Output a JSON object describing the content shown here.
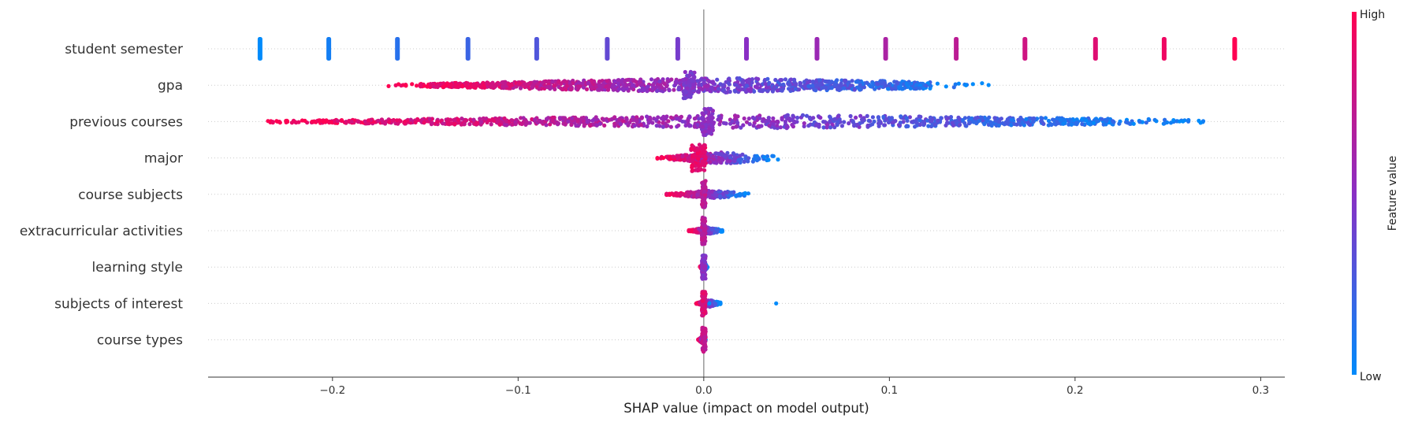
{
  "chart_data": {
    "type": "scatter",
    "subtype": "shap-beeswarm",
    "title": "",
    "xlabel": "SHAP value (impact on model output)",
    "ylabel": "",
    "xlim": [
      -0.267,
      0.313
    ],
    "xticks": [
      -0.2,
      -0.1,
      0.0,
      0.1,
      0.2,
      0.3
    ],
    "xtick_labels": [
      "−0.2",
      "−0.1",
      "0.0",
      "0.1",
      "0.2",
      "0.3"
    ],
    "grid": "horizontal dotted row guides",
    "zero_line": 0.0,
    "colorbar": {
      "label": "Feature value",
      "high_label": "High",
      "low_label": "Low",
      "low_color": "#008bfb",
      "high_color": "#ff0052",
      "placement": "right"
    },
    "features": [
      {
        "name": "student semester",
        "kind": "discrete",
        "points": [
          {
            "x": -0.239,
            "f": 0.0
          },
          {
            "x": -0.202,
            "f": 0.07
          },
          {
            "x": -0.165,
            "f": 0.14
          },
          {
            "x": -0.127,
            "f": 0.21
          },
          {
            "x": -0.09,
            "f": 0.29
          },
          {
            "x": -0.052,
            "f": 0.36
          },
          {
            "x": -0.014,
            "f": 0.43
          },
          {
            "x": 0.023,
            "f": 0.5
          },
          {
            "x": 0.061,
            "f": 0.57
          },
          {
            "x": 0.098,
            "f": 0.64
          },
          {
            "x": 0.136,
            "f": 0.71
          },
          {
            "x": 0.173,
            "f": 0.79
          },
          {
            "x": 0.211,
            "f": 0.86
          },
          {
            "x": 0.248,
            "f": 0.93
          },
          {
            "x": 0.286,
            "f": 1.0
          }
        ]
      },
      {
        "name": "gpa",
        "kind": "dense",
        "range": [
          -0.17,
          0.155
        ],
        "spread": 0.55,
        "color_trend": "high-left",
        "cluster": {
          "x": -0.008,
          "halfwidth": 0.003,
          "height": 1.0,
          "f": 0.45
        }
      },
      {
        "name": "previous courses",
        "kind": "dense",
        "range": [
          -0.237,
          0.272
        ],
        "spread": 0.5,
        "color_trend": "high-left",
        "cluster": {
          "x": 0.002,
          "halfwidth": 0.003,
          "height": 1.0,
          "f": 0.5
        }
      },
      {
        "name": "major",
        "kind": "compact",
        "range": [
          -0.025,
          0.04
        ],
        "spread": 0.45,
        "color_trend": "high-left",
        "cluster": {
          "x": -0.003,
          "halfwidth": 0.004,
          "height": 1.0,
          "f": 0.9
        }
      },
      {
        "name": "course subjects",
        "kind": "compact",
        "range": [
          -0.02,
          0.024
        ],
        "spread": 0.3,
        "color_trend": "high-left",
        "cluster": {
          "x": 0.0,
          "halfwidth": 0.001,
          "height": 1.0,
          "f": 0.7
        }
      },
      {
        "name": "extracurricular activities",
        "kind": "compact",
        "range": [
          -0.008,
          0.01
        ],
        "spread": 0.25,
        "color_trend": "high-left",
        "cluster": {
          "x": 0.0,
          "halfwidth": 0.001,
          "height": 1.0,
          "f": 0.7
        }
      },
      {
        "name": "learning style",
        "kind": "compact",
        "range": [
          -0.002,
          0.002
        ],
        "spread": 0.3,
        "color_trend": "high-left",
        "cluster": {
          "x": 0.0,
          "halfwidth": 0.001,
          "height": 0.9,
          "f": 0.5
        }
      },
      {
        "name": "subjects of interest",
        "kind": "compact",
        "range": [
          -0.004,
          0.009
        ],
        "spread": 0.25,
        "color_trend": "high-left",
        "outliers": [
          {
            "x": 0.039,
            "f": 0.0
          },
          {
            "x": 0.009,
            "f": 0.0
          },
          {
            "x": 0.003,
            "f": 0.0
          }
        ],
        "cluster": {
          "x": 0.0,
          "halfwidth": 0.001,
          "height": 0.9,
          "f": 0.85
        }
      },
      {
        "name": "course types",
        "kind": "compact",
        "range": [
          -0.003,
          0.001
        ],
        "spread": 0.25,
        "color_trend": "high-left",
        "cluster": {
          "x": 0.0,
          "halfwidth": 0.001,
          "height": 0.9,
          "f": 0.75
        }
      }
    ]
  }
}
